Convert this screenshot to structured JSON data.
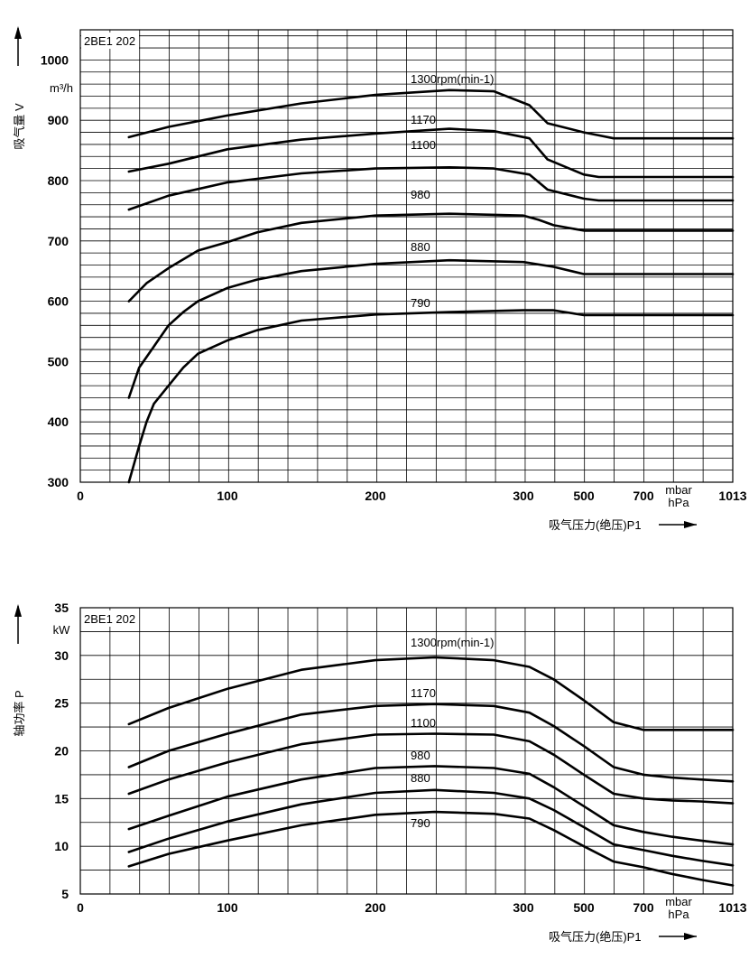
{
  "chart_data": [
    {
      "type": "line",
      "model_label": "2BE1 202",
      "ylabel": "吸气量 V",
      "yunit": "m³/h",
      "xlabel": "吸气压力(绝压)P1",
      "xunit_1": "mbar",
      "xunit_2": "hPa",
      "x_ticks": [
        "0",
        "100",
        "200",
        "300",
        "500",
        "700",
        "1013"
      ],
      "y_ticks": [
        "1000",
        "900",
        "800",
        "700",
        "600",
        "500",
        "400",
        "300"
      ],
      "ylim": [
        300,
        1050
      ],
      "series": [
        {
          "name": "1300rpm(min-1)",
          "x": [
            33,
            60,
            100,
            150,
            200,
            250,
            280,
            320,
            380,
            500,
            550,
            600,
            700,
            1013
          ],
          "y": [
            872,
            889,
            908,
            928,
            942,
            950,
            948,
            925,
            895,
            880,
            875,
            870,
            870,
            870
          ]
        },
        {
          "name": "1170",
          "x": [
            33,
            60,
            100,
            150,
            200,
            250,
            280,
            320,
            380,
            500,
            550,
            600,
            700,
            1013
          ],
          "y": [
            815,
            828,
            852,
            868,
            878,
            886,
            882,
            870,
            835,
            810,
            806,
            806,
            806,
            806
          ]
        },
        {
          "name": "1100",
          "x": [
            33,
            60,
            100,
            150,
            200,
            250,
            280,
            320,
            380,
            500,
            550,
            600,
            700,
            1013
          ],
          "y": [
            752,
            775,
            797,
            812,
            820,
            822,
            820,
            810,
            785,
            770,
            767,
            767,
            767,
            767
          ]
        },
        {
          "name": "980",
          "x": [
            33,
            45,
            60,
            80,
            100,
            120,
            150,
            200,
            250,
            300,
            350,
            400,
            500,
            600,
            1013
          ],
          "y": [
            600,
            630,
            655,
            684,
            698,
            714,
            730,
            742,
            745,
            742,
            735,
            726,
            717,
            717,
            717
          ]
        },
        {
          "name": "880",
          "x": [
            33,
            40,
            50,
            60,
            70,
            80,
            100,
            120,
            150,
            200,
            250,
            300,
            400,
            500,
            600,
            1013
          ],
          "y": [
            440,
            490,
            525,
            560,
            582,
            600,
            622,
            636,
            650,
            662,
            668,
            665,
            657,
            645,
            645,
            645
          ]
        },
        {
          "name": "790",
          "x": [
            33,
            40,
            45,
            50,
            60,
            70,
            80,
            100,
            120,
            150,
            200,
            250,
            300,
            400,
            500,
            600,
            1013
          ],
          "y": [
            300,
            360,
            400,
            430,
            460,
            490,
            513,
            535,
            552,
            568,
            578,
            582,
            585,
            585,
            577,
            577,
            577
          ]
        }
      ]
    },
    {
      "type": "line",
      "model_label": "2BE1 202",
      "ylabel": "轴功率 P",
      "yunit": "kW",
      "xlabel": "吸气压力(绝压)P1",
      "xunit_1": "mbar",
      "xunit_2": "hPa",
      "x_ticks": [
        "0",
        "100",
        "200",
        "300",
        "500",
        "700",
        "1013"
      ],
      "y_ticks": [
        "35",
        "30",
        "25",
        "20",
        "15",
        "10",
        "5"
      ],
      "ylim": [
        5,
        35
      ],
      "series": [
        {
          "name": "1300rpm(min-1)",
          "x": [
            33,
            60,
            100,
            150,
            200,
            240,
            280,
            320,
            400,
            500,
            600,
            700,
            800,
            900,
            1013
          ],
          "y": [
            22.8,
            24.5,
            26.5,
            28.5,
            29.5,
            29.8,
            29.5,
            28.8,
            27.5,
            25.3,
            23,
            22.2,
            22.2,
            22.2,
            22.2
          ]
        },
        {
          "name": "1170",
          "x": [
            33,
            60,
            100,
            150,
            200,
            240,
            280,
            320,
            400,
            500,
            600,
            700,
            800,
            900,
            1013
          ],
          "y": [
            18.3,
            20,
            21.8,
            23.8,
            24.7,
            24.9,
            24.7,
            24,
            22.6,
            20.5,
            18.3,
            17.5,
            17.2,
            17,
            16.8
          ]
        },
        {
          "name": "1100",
          "x": [
            33,
            60,
            100,
            150,
            200,
            240,
            280,
            320,
            400,
            500,
            600,
            700,
            800,
            900,
            1013
          ],
          "y": [
            15.5,
            17,
            18.8,
            20.7,
            21.7,
            21.8,
            21.7,
            21,
            19.6,
            17.5,
            15.5,
            15,
            14.8,
            14.7,
            14.5
          ]
        },
        {
          "name": "980",
          "x": [
            33,
            60,
            100,
            150,
            200,
            240,
            280,
            320,
            400,
            500,
            600,
            700,
            800,
            900,
            1013
          ],
          "y": [
            11.8,
            13.2,
            15.2,
            17,
            18.2,
            18.4,
            18.2,
            17.6,
            16.2,
            14.2,
            12.2,
            11.5,
            11,
            10.6,
            10.2
          ]
        },
        {
          "name": "880",
          "x": [
            33,
            60,
            100,
            150,
            200,
            240,
            280,
            320,
            400,
            500,
            600,
            700,
            800,
            900,
            1013
          ],
          "y": [
            9.4,
            10.8,
            12.6,
            14.4,
            15.6,
            15.9,
            15.6,
            15,
            13.8,
            12,
            10.2,
            9.6,
            9,
            8.5,
            8
          ]
        },
        {
          "name": "790",
          "x": [
            33,
            60,
            100,
            150,
            200,
            240,
            280,
            320,
            400,
            500,
            600,
            700,
            800,
            900,
            1013
          ],
          "y": [
            7.9,
            9.2,
            10.6,
            12.2,
            13.3,
            13.6,
            13.4,
            12.9,
            11.7,
            10,
            8.4,
            7.8,
            7.1,
            6.5,
            5.9
          ]
        }
      ]
    }
  ]
}
